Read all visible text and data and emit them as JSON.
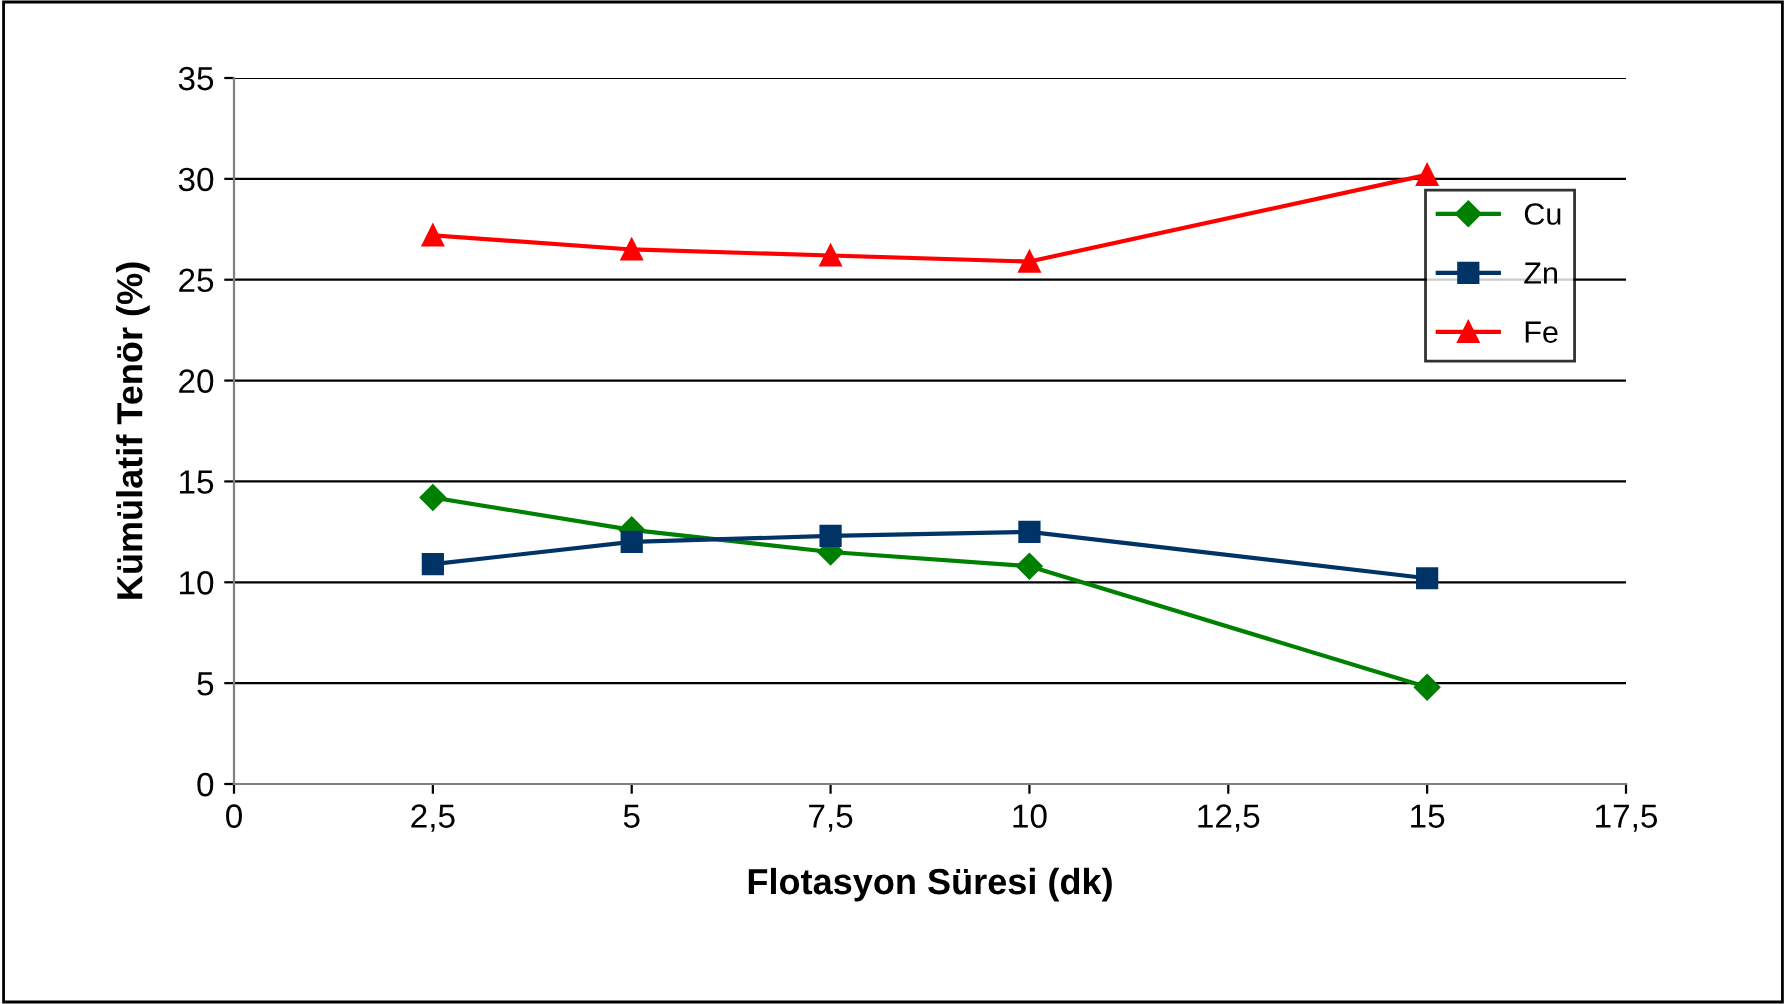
{
  "chart_data": {
    "type": "line",
    "xlabel": "Flotasyon Süresi (dk)",
    "ylabel": "Kümülatif Tenör (%)",
    "x": [
      2.5,
      5,
      7.5,
      10,
      15
    ],
    "series": [
      {
        "name": "Cu",
        "color": "#008000",
        "values": [
          14.2,
          12.6,
          11.5,
          10.8,
          4.8
        ],
        "marker": "diamond"
      },
      {
        "name": "Zn",
        "color": "#003366",
        "values": [
          10.9,
          12.0,
          12.3,
          12.5,
          10.2
        ],
        "marker": "square"
      },
      {
        "name": "Fe",
        "color": "#ff0000",
        "values": [
          27.2,
          26.5,
          26.2,
          25.9,
          30.2
        ],
        "marker": "triangle"
      }
    ],
    "xlim": [
      0,
      17.5
    ],
    "xticks": [
      0,
      {
        "value": 2.5,
        "label": "2,5"
      },
      5,
      {
        "value": 7.5,
        "label": "7,5"
      },
      10,
      {
        "value": 12.5,
        "label": "12,5"
      },
      15,
      {
        "value": 17.5,
        "label": "17,5"
      }
    ],
    "ylim": [
      0,
      35
    ],
    "yticks": [
      0,
      5,
      10,
      15,
      20,
      25,
      30,
      35
    ],
    "grid": "y",
    "legend": "right",
    "line_style": "solid"
  }
}
